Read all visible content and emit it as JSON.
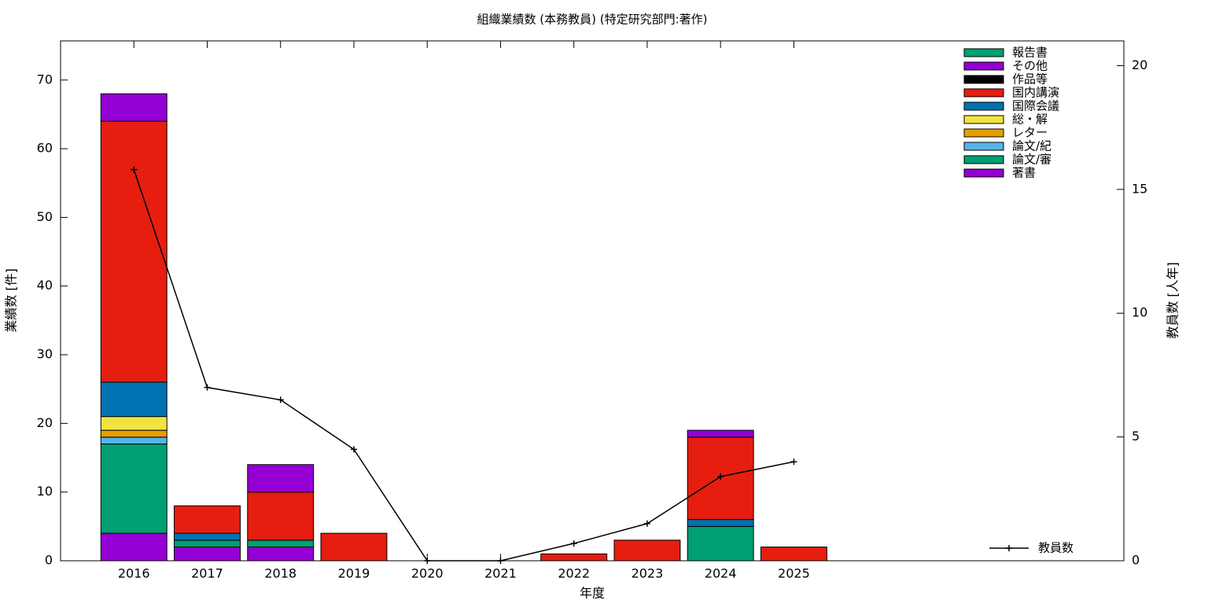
{
  "chart_data": {
    "type": "bar",
    "title": "組織業績数 (本務教員) (特定研究部門:著作)",
    "x_label": "年度",
    "y_label": "業績数 [件]",
    "y2_label": "教員数 [人年]",
    "categories": [
      "2016",
      "2017",
      "2018",
      "2019",
      "2020",
      "2021",
      "2022",
      "2023",
      "2024",
      "2025"
    ],
    "stacked": true,
    "series": [
      {
        "name": "著書",
        "color": "#9400d3",
        "values": [
          4,
          2,
          2,
          0,
          0,
          0,
          0,
          0,
          0,
          0
        ]
      },
      {
        "name": "論文/審",
        "color": "#009e73",
        "values": [
          13,
          1,
          1,
          0,
          0,
          0,
          0,
          0,
          5,
          0
        ]
      },
      {
        "name": "論文/紀",
        "color": "#56b4e9",
        "values": [
          1,
          0,
          0,
          0,
          0,
          0,
          0,
          0,
          0,
          0
        ]
      },
      {
        "name": "レター",
        "color": "#e69f00",
        "values": [
          1,
          0,
          0,
          0,
          0,
          0,
          0,
          0,
          0,
          0
        ]
      },
      {
        "name": "総・解",
        "color": "#f0e442",
        "values": [
          2,
          0,
          0,
          0,
          0,
          0,
          0,
          0,
          0,
          0
        ]
      },
      {
        "name": "国際会議",
        "color": "#0072b2",
        "values": [
          5,
          1,
          0,
          0,
          0,
          0,
          0,
          0,
          1,
          0
        ]
      },
      {
        "name": "国内講演",
        "color": "#e51e10",
        "values": [
          38,
          4,
          7,
          4,
          0,
          0,
          1,
          3,
          12,
          2
        ]
      },
      {
        "name": "作品等",
        "color": "#000000",
        "values": [
          0,
          0,
          0,
          0,
          0,
          0,
          0,
          0,
          0,
          0
        ]
      },
      {
        "name": "その他",
        "color": "#9400d3",
        "values": [
          4,
          0,
          4,
          0,
          0,
          0,
          0,
          0,
          1,
          0
        ]
      },
      {
        "name": "報告書",
        "color": "#009e73",
        "values": [
          0,
          0,
          0,
          0,
          0,
          0,
          0,
          0,
          0,
          0
        ]
      },
      {
        "name": "教員数",
        "type": "line",
        "axis": "y2",
        "color": "#000000",
        "values": [
          15.8,
          7.0,
          6.5,
          4.5,
          0,
          0,
          0.7,
          1.5,
          3.4,
          4.0
        ]
      }
    ],
    "ylim": [
      0,
      75.7
    ],
    "yticks": [
      0,
      10,
      20,
      30,
      40,
      50,
      60,
      70
    ],
    "y2lim": [
      0,
      21
    ],
    "y2ticks": [
      0,
      5,
      10,
      15,
      20
    ]
  }
}
